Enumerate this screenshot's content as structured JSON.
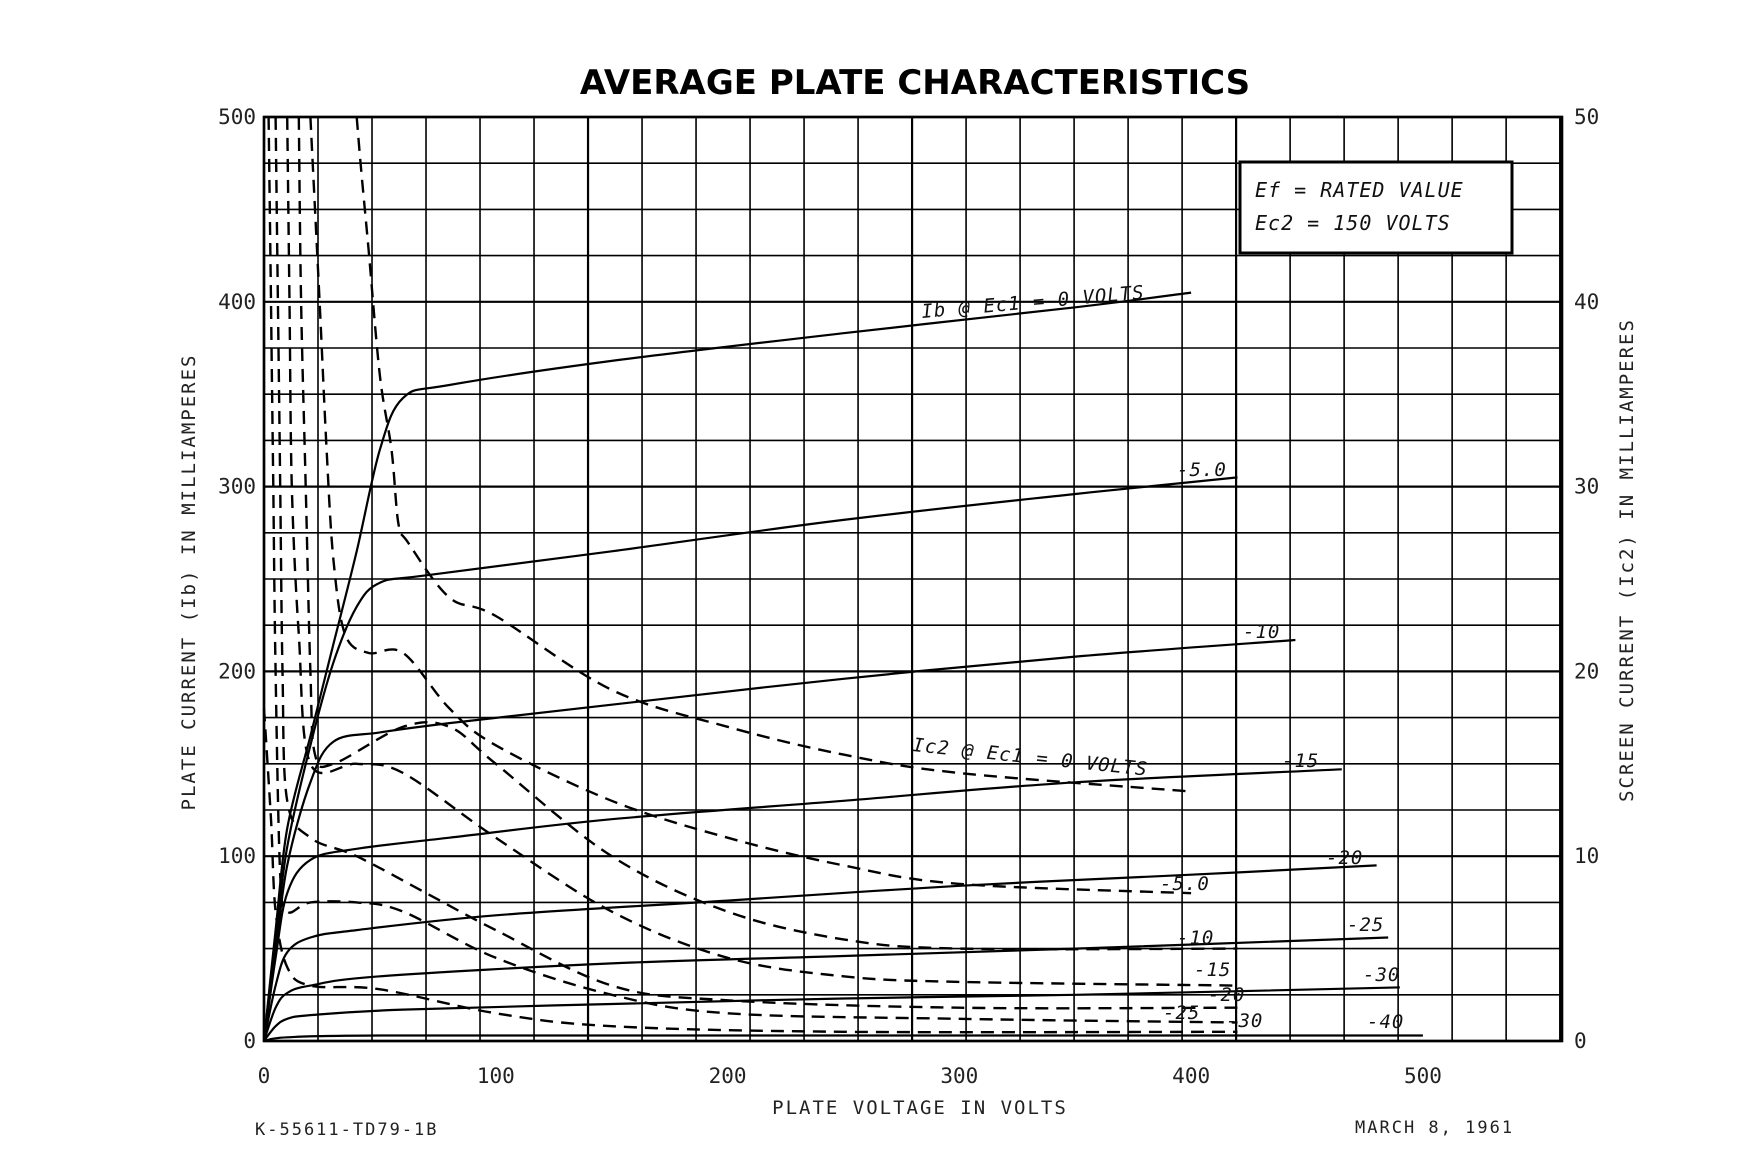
{
  "chart_data": {
    "type": "line",
    "title": "AVERAGE PLATE CHARACTERISTICS",
    "xlabel": "PLATE VOLTAGE IN VOLTS",
    "ylabel": "PLATE CURRENT (Ib) IN MILLIAMPERES",
    "y2label": "SCREEN CURRENT (Ic2) IN MILLIAMPERES",
    "xlim": [
      0,
      560
    ],
    "ylim": [
      0,
      500
    ],
    "y2lim": [
      0,
      50
    ],
    "grid": true,
    "x_ticks": [
      "0",
      "100",
      "200",
      "300",
      "400",
      "500"
    ],
    "y_ticks": [
      "0",
      "100",
      "200",
      "300",
      "400",
      "500"
    ],
    "y2_ticks": [
      "0",
      "10",
      "20",
      "30",
      "40",
      "50"
    ],
    "conditions": [
      "Ef = RATED VALUE",
      "Ec2 = 150 VOLTS"
    ],
    "series": [
      {
        "name": "Ib @ Ec1 = 0 VOLTS",
        "kind": "plate",
        "points": [
          [
            0,
            0
          ],
          [
            5,
            60
          ],
          [
            10,
            115
          ],
          [
            20,
            165
          ],
          [
            30,
            215
          ],
          [
            40,
            265
          ],
          [
            50,
            320
          ],
          [
            60,
            348
          ],
          [
            80,
            355
          ],
          [
            150,
            368
          ],
          [
            250,
            383
          ],
          [
            350,
            397
          ],
          [
            400,
            405
          ]
        ]
      },
      {
        "name": "-5.0",
        "kind": "plate",
        "points": [
          [
            0,
            0
          ],
          [
            5,
            55
          ],
          [
            10,
            105
          ],
          [
            20,
            160
          ],
          [
            30,
            205
          ],
          [
            40,
            235
          ],
          [
            50,
            248
          ],
          [
            70,
            252
          ],
          [
            150,
            265
          ],
          [
            250,
            282
          ],
          [
            350,
            296
          ],
          [
            420,
            305
          ]
        ]
      },
      {
        "name": "-10",
        "kind": "plate",
        "points": [
          [
            0,
            0
          ],
          [
            5,
            48
          ],
          [
            10,
            95
          ],
          [
            20,
            140
          ],
          [
            30,
            162
          ],
          [
            50,
            167
          ],
          [
            80,
            172
          ],
          [
            150,
            182
          ],
          [
            250,
            196
          ],
          [
            350,
            208
          ],
          [
            445,
            217
          ]
        ]
      },
      {
        "name": "-15",
        "kind": "plate",
        "points": [
          [
            0,
            0
          ],
          [
            5,
            45
          ],
          [
            10,
            80
          ],
          [
            20,
            98
          ],
          [
            40,
            104
          ],
          [
            80,
            110
          ],
          [
            150,
            120
          ],
          [
            250,
            130
          ],
          [
            350,
            140
          ],
          [
            465,
            147
          ]
        ]
      },
      {
        "name": "-20",
        "kind": "plate",
        "points": [
          [
            0,
            0
          ],
          [
            5,
            30
          ],
          [
            10,
            48
          ],
          [
            20,
            56
          ],
          [
            40,
            60
          ],
          [
            100,
            68
          ],
          [
            200,
            76
          ],
          [
            300,
            84
          ],
          [
            400,
            90
          ],
          [
            480,
            95
          ]
        ]
      },
      {
        "name": "-25",
        "kind": "plate",
        "points": [
          [
            0,
            0
          ],
          [
            5,
            18
          ],
          [
            10,
            26
          ],
          [
            20,
            30
          ],
          [
            50,
            35
          ],
          [
            150,
            42
          ],
          [
            250,
            46
          ],
          [
            350,
            50
          ],
          [
            485,
            56
          ]
        ]
      },
      {
        "name": "-30",
        "kind": "plate",
        "points": [
          [
            0,
            0
          ],
          [
            5,
            8
          ],
          [
            10,
            12
          ],
          [
            20,
            14
          ],
          [
            60,
            17
          ],
          [
            150,
            20
          ],
          [
            250,
            23
          ],
          [
            350,
            25
          ],
          [
            490,
            29
          ]
        ]
      },
      {
        "name": "-40",
        "kind": "plate",
        "points": [
          [
            0,
            0
          ],
          [
            10,
            2
          ],
          [
            50,
            3
          ],
          [
            200,
            3
          ],
          [
            500,
            3
          ]
        ]
      },
      {
        "name": "Ic2 @ Ec1 = 0 VOLTS",
        "kind": "screen",
        "points": [
          [
            40,
            50
          ],
          [
            42,
            47
          ],
          [
            45,
            43
          ],
          [
            50,
            36
          ],
          [
            55,
            32
          ],
          [
            58,
            28
          ],
          [
            62,
            27
          ],
          [
            80,
            24
          ],
          [
            100,
            23
          ],
          [
            150,
            19
          ],
          [
            200,
            17
          ],
          [
            250,
            15.5
          ],
          [
            300,
            14.5
          ],
          [
            400,
            13.5
          ]
        ]
      },
      {
        "name": "-5.0",
        "kind": "screen",
        "points": [
          [
            20,
            50
          ],
          [
            24,
            40
          ],
          [
            27,
            32
          ],
          [
            30,
            26
          ],
          [
            35,
            22
          ],
          [
            45,
            21
          ],
          [
            60,
            21
          ],
          [
            80,
            18
          ],
          [
            100,
            16
          ],
          [
            150,
            13
          ],
          [
            200,
            11
          ],
          [
            250,
            9.5
          ],
          [
            300,
            8.5
          ],
          [
            400,
            8
          ]
        ]
      },
      {
        "name": "-10",
        "kind": "screen",
        "points": [
          [
            15,
            50
          ],
          [
            16,
            40
          ],
          [
            18,
            30
          ],
          [
            20,
            20
          ],
          [
            22,
            15.5
          ],
          [
            30,
            15
          ],
          [
            60,
            17
          ],
          [
            80,
            17
          ],
          [
            100,
            15
          ],
          [
            150,
            10
          ],
          [
            200,
            7
          ],
          [
            250,
            5.5
          ],
          [
            300,
            5
          ],
          [
            420,
            5
          ]
        ]
      },
      {
        "name": "-15",
        "kind": "screen",
        "points": [
          [
            10,
            50
          ],
          [
            11,
            40
          ],
          [
            12,
            30
          ],
          [
            15,
            22
          ],
          [
            20,
            15
          ],
          [
            40,
            15
          ],
          [
            60,
            14.5
          ],
          [
            100,
            11
          ],
          [
            150,
            7
          ],
          [
            200,
            4.5
          ],
          [
            250,
            3.5
          ],
          [
            300,
            3.2
          ],
          [
            420,
            3
          ]
        ]
      },
      {
        "name": "-20",
        "kind": "screen",
        "points": [
          [
            5,
            50
          ],
          [
            6,
            40
          ],
          [
            7,
            30
          ],
          [
            8,
            20
          ],
          [
            10,
            13
          ],
          [
            20,
            11
          ],
          [
            40,
            10
          ],
          [
            70,
            8
          ],
          [
            100,
            6
          ],
          [
            150,
            3
          ],
          [
            200,
            2.2
          ],
          [
            300,
            1.8
          ],
          [
            420,
            1.8
          ]
        ]
      },
      {
        "name": "-25",
        "kind": "screen",
        "points": [
          [
            2,
            50
          ],
          [
            3,
            40
          ],
          [
            4,
            30
          ],
          [
            5,
            20
          ],
          [
            7,
            9
          ],
          [
            10,
            7
          ],
          [
            20,
            7.5
          ],
          [
            40,
            7.5
          ],
          [
            60,
            7
          ],
          [
            100,
            4.5
          ],
          [
            150,
            2.5
          ],
          [
            200,
            1.5
          ],
          [
            300,
            1.2
          ],
          [
            420,
            1
          ]
        ]
      },
      {
        "name": "-30",
        "kind": "screen",
        "points": [
          [
            0,
            18
          ],
          [
            3,
            12
          ],
          [
            5,
            7
          ],
          [
            10,
            4
          ],
          [
            20,
            3
          ],
          [
            50,
            2.8
          ],
          [
            100,
            1.5
          ],
          [
            150,
            0.8
          ],
          [
            250,
            0.5
          ],
          [
            420,
            0.5
          ]
        ]
      }
    ]
  },
  "box": {
    "line1": "Ef = RATED VALUE",
    "line2": "Ec2 = 150 VOLTS"
  },
  "labels": {
    "ib_0": "Ib @ Ec1 = 0 VOLTS",
    "ib_5": "-5.0",
    "ib_10": "-10",
    "ib_15": "-15",
    "ib_20": "-20",
    "ib_25": "-25",
    "ib_30": "-30",
    "ib_40": "-40",
    "ic2_0": "Ic2 @ Ec1 = 0 VOLTS",
    "ic2_5": "-5.0",
    "ic2_10": "-10",
    "ic2_15": "-15",
    "ic2_20": "-20",
    "ic2_25": "-25",
    "ic2_30": "-30"
  },
  "footer": {
    "drawing_number": "K-55611-TD79-1B",
    "date": "MARCH 8, 1961"
  }
}
